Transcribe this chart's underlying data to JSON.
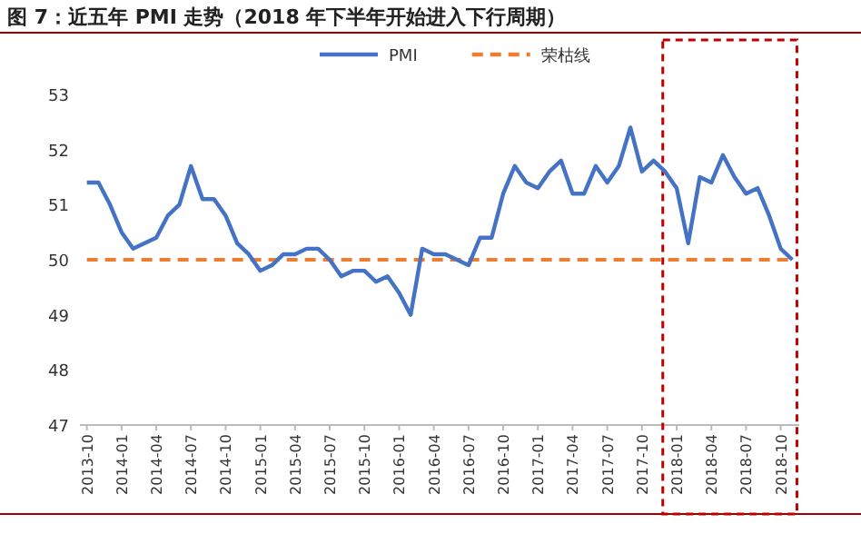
{
  "chart_data": {
    "type": "line",
    "title": "图 7：近五年 PMI 走势（2018 年下半年开始进入下行周期）",
    "categories": [
      "2013-10",
      null,
      null,
      "2014-01",
      null,
      null,
      "2014-04",
      null,
      null,
      "2014-07",
      null,
      null,
      "2014-10",
      null,
      null,
      "2015-01",
      null,
      null,
      "2015-04",
      null,
      null,
      "2015-07",
      null,
      null,
      "2015-10",
      null,
      null,
      "2016-01",
      null,
      null,
      "2016-04",
      null,
      null,
      "2016-07",
      null,
      null,
      "2016-10",
      null,
      null,
      "2017-01",
      null,
      null,
      "2017-04",
      null,
      null,
      "2017-07",
      null,
      null,
      "2017-10",
      null,
      null,
      "2018-01",
      null,
      null,
      "2018-04",
      null,
      null,
      "2018-07",
      null,
      null,
      "2018-10",
      null
    ],
    "series": [
      {
        "name": "PMI",
        "color": "#4472c4",
        "values": [
          51.4,
          51.4,
          51.0,
          50.5,
          50.2,
          50.3,
          50.4,
          50.8,
          51.0,
          51.7,
          51.1,
          51.1,
          50.8,
          50.3,
          50.1,
          49.8,
          49.9,
          50.1,
          50.1,
          50.2,
          50.2,
          50.0,
          49.7,
          49.8,
          49.8,
          49.6,
          49.7,
          49.4,
          49.0,
          50.2,
          50.1,
          50.1,
          50.0,
          49.9,
          50.4,
          50.4,
          51.2,
          51.7,
          51.4,
          51.3,
          51.6,
          51.8,
          51.2,
          51.2,
          51.7,
          51.4,
          51.7,
          52.4,
          51.6,
          51.8,
          51.6,
          51.3,
          50.3,
          51.5,
          51.4,
          51.9,
          51.5,
          51.2,
          51.3,
          50.8,
          50.2,
          50.0
        ]
      }
    ],
    "ref_lines": [
      {
        "axis": "y",
        "value": 50,
        "label": "荣枯线",
        "color": "#ed7d31",
        "line_style": "dashed"
      }
    ],
    "ylim": [
      47,
      53
    ],
    "yticks": [
      47,
      48,
      49,
      50,
      51,
      52,
      53
    ],
    "grid": false,
    "legend": "top",
    "marker": "none",
    "line_style": "solid"
  }
}
